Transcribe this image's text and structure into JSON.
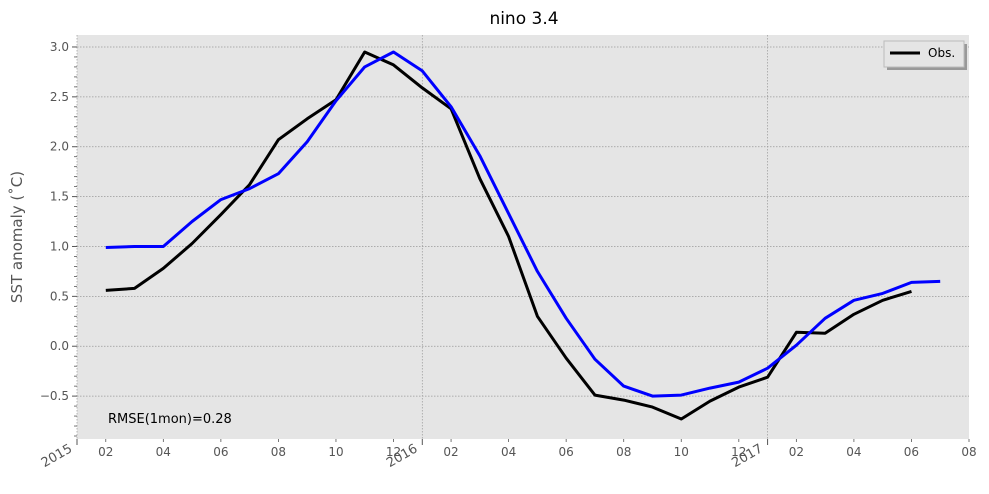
{
  "chart_data": {
    "type": "line",
    "title": "nino 3.4",
    "ylabel": "SST anomaly ($^\\circ$C)",
    "ylabel_display": "SST anomaly (˚C)",
    "xlabel": "",
    "x_range": [
      "2015-01",
      "2017-08"
    ],
    "ylim": [
      -0.93,
      3.12
    ],
    "y_ticks": [
      "3.0",
      "2.5",
      "2.0",
      "1.5",
      "1.0",
      "0.5",
      "0.0",
      "−0.5"
    ],
    "y_tick_values": [
      3.0,
      2.5,
      2.0,
      1.5,
      1.0,
      0.5,
      0.0,
      -0.5
    ],
    "x_major_ticks": [
      {
        "x": "2015-01",
        "label": "2015"
      },
      {
        "x": "2016-01",
        "label": "2016"
      },
      {
        "x": "2017-01",
        "label": "2017"
      }
    ],
    "x_minor_ticks": [
      {
        "x": "2015-02",
        "label": "02"
      },
      {
        "x": "2015-04",
        "label": "04"
      },
      {
        "x": "2015-06",
        "label": "06"
      },
      {
        "x": "2015-08",
        "label": "08"
      },
      {
        "x": "2015-10",
        "label": "10"
      },
      {
        "x": "2015-12",
        "label": "12"
      },
      {
        "x": "2016-02",
        "label": "02"
      },
      {
        "x": "2016-04",
        "label": "04"
      },
      {
        "x": "2016-06",
        "label": "06"
      },
      {
        "x": "2016-08",
        "label": "08"
      },
      {
        "x": "2016-10",
        "label": "10"
      },
      {
        "x": "2016-12",
        "label": "12"
      },
      {
        "x": "2017-02",
        "label": "02"
      },
      {
        "x": "2017-04",
        "label": "04"
      },
      {
        "x": "2017-06",
        "label": "06"
      },
      {
        "x": "2017-08",
        "label": "08"
      }
    ],
    "grid": true,
    "legend": {
      "placement": "top-right",
      "entries": [
        "Obs."
      ]
    },
    "annotation": "RMSE(1mon)=0.28",
    "series": [
      {
        "name": "Obs.",
        "color": "#000000",
        "x": [
          "2015-02",
          "2015-03",
          "2015-04",
          "2015-05",
          "2015-06",
          "2015-07",
          "2015-08",
          "2015-09",
          "2015-10",
          "2015-11",
          "2015-12",
          "2016-01",
          "2016-02",
          "2016-03",
          "2016-04",
          "2016-05",
          "2016-06",
          "2016-07",
          "2016-08",
          "2016-09",
          "2016-10",
          "2016-11",
          "2016-12",
          "2017-01",
          "2017-02",
          "2017-03",
          "2017-04",
          "2017-05",
          "2017-06"
        ],
        "y": [
          0.56,
          0.58,
          0.78,
          1.03,
          1.32,
          1.62,
          2.07,
          2.28,
          2.47,
          2.95,
          2.82,
          2.59,
          2.38,
          1.68,
          1.1,
          0.3,
          -0.12,
          -0.49,
          -0.54,
          -0.61,
          -0.73,
          -0.55,
          -0.41,
          -0.31,
          0.14,
          0.13,
          0.32,
          0.46,
          0.55
        ]
      },
      {
        "color": "#0000ff",
        "x": [
          "2015-02",
          "2015-03",
          "2015-04",
          "2015-05",
          "2015-06",
          "2015-07",
          "2015-08",
          "2015-09",
          "2015-10",
          "2015-11",
          "2015-12",
          "2016-01",
          "2016-02",
          "2016-03",
          "2016-04",
          "2016-05",
          "2016-06",
          "2016-07",
          "2016-08",
          "2016-09",
          "2016-10",
          "2016-11",
          "2016-12",
          "2017-01",
          "2017-02",
          "2017-03",
          "2017-04",
          "2017-05",
          "2017-06",
          "2017-07"
        ],
        "y": [
          0.99,
          1.0,
          1.0,
          1.25,
          1.47,
          1.58,
          1.73,
          2.05,
          2.46,
          2.8,
          2.95,
          2.76,
          2.4,
          1.91,
          1.33,
          0.75,
          0.28,
          -0.13,
          -0.4,
          -0.5,
          -0.49,
          -0.42,
          -0.36,
          -0.22,
          0.01,
          0.28,
          0.46,
          0.53,
          0.64,
          0.65
        ]
      }
    ]
  }
}
